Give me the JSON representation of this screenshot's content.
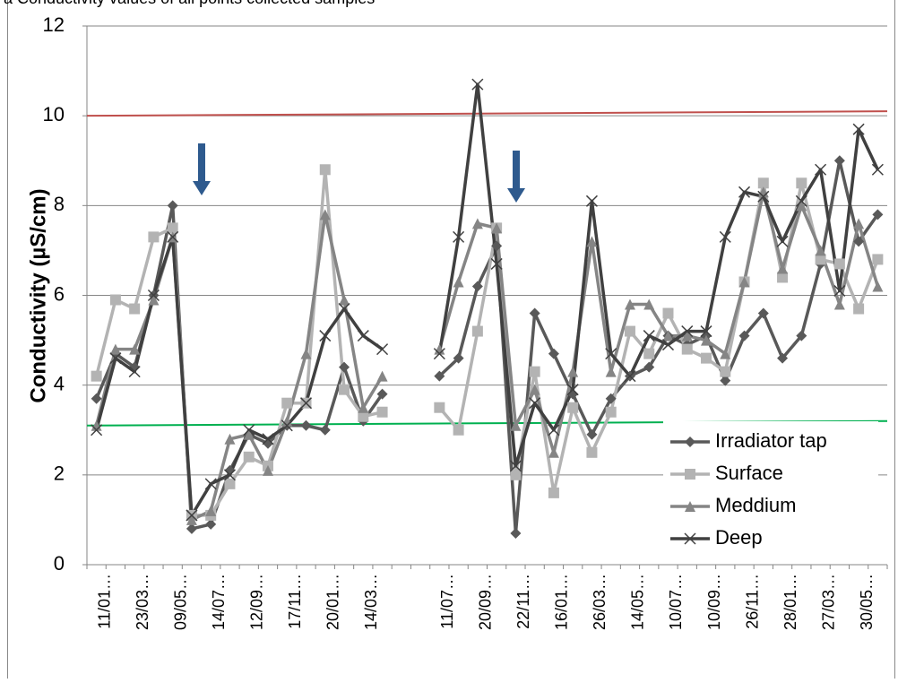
{
  "chart_data": {
    "type": "line",
    "title": "a Conductivity values of all points collected samples",
    "y_label": "Conductivity (µS/cm)",
    "categories": [
      "11/01…",
      null,
      "23/03…",
      null,
      "09/05…",
      null,
      "14/07…",
      null,
      "12/09…",
      null,
      "17/11…",
      null,
      "20/01…",
      null,
      "14/03…",
      null,
      null,
      null,
      "11/07…",
      null,
      "20/09…",
      null,
      "22/11…",
      null,
      "16/01…",
      null,
      "26/03…",
      null,
      "14/05…",
      null,
      "10/07…",
      null,
      "10/09…",
      null,
      "26/11…",
      null,
      "28/01…",
      null,
      "27/03…",
      null,
      "30/05…",
      null
    ],
    "series": [
      {
        "name": "Irradiator tap",
        "color": "#595959",
        "marker": "diamond",
        "values": [
          3.7,
          4.7,
          4.4,
          6.0,
          8.0,
          0.8,
          0.9,
          2.1,
          2.9,
          2.7,
          3.1,
          3.1,
          3.0,
          4.4,
          3.2,
          3.8,
          null,
          null,
          4.2,
          4.6,
          6.2,
          7.1,
          0.7,
          5.6,
          4.7,
          3.8,
          2.9,
          3.7,
          4.2,
          4.4,
          5.1,
          4.9,
          5.1,
          4.1,
          5.1,
          5.6,
          4.6,
          5.1,
          6.7,
          9.0,
          7.2,
          7.8
        ]
      },
      {
        "name": "Surface",
        "color": "#b3b3b3",
        "marker": "square",
        "values": [
          4.2,
          5.9,
          5.7,
          7.3,
          7.5,
          1.1,
          1.1,
          1.8,
          2.4,
          2.2,
          3.6,
          3.6,
          8.8,
          3.9,
          3.3,
          3.4,
          null,
          null,
          3.5,
          3.0,
          5.2,
          7.5,
          2.0,
          4.3,
          1.6,
          3.5,
          2.5,
          3.4,
          5.2,
          4.7,
          5.6,
          4.8,
          4.6,
          4.3,
          6.3,
          8.5,
          6.4,
          8.5,
          6.8,
          6.7,
          5.7,
          6.8
        ]
      },
      {
        "name": "Meddium",
        "color": "#858585",
        "marker": "triangle",
        "values": [
          3.1,
          4.8,
          4.8,
          5.9,
          7.3,
          1.0,
          1.2,
          2.8,
          2.9,
          2.1,
          3.2,
          4.7,
          7.8,
          5.9,
          3.5,
          4.2,
          null,
          null,
          4.8,
          6.3,
          7.6,
          7.5,
          3.1,
          3.9,
          2.5,
          4.3,
          7.2,
          4.3,
          5.8,
          5.8,
          5.1,
          5.1,
          5.0,
          4.7,
          6.3,
          8.3,
          6.6,
          8.0,
          7.0,
          5.8,
          7.6,
          6.2
        ]
      },
      {
        "name": "Deep",
        "color": "#404040",
        "marker": "x",
        "values": [
          3.0,
          4.6,
          4.3,
          6.0,
          7.3,
          1.1,
          1.8,
          2.0,
          3.0,
          2.8,
          3.1,
          3.6,
          5.1,
          5.7,
          5.1,
          4.8,
          null,
          null,
          4.7,
          7.3,
          10.7,
          6.7,
          2.2,
          3.6,
          3.0,
          3.9,
          8.1,
          4.7,
          4.2,
          5.1,
          4.9,
          5.2,
          5.2,
          7.3,
          8.3,
          8.2,
          7.2,
          8.1,
          8.8,
          6.1,
          9.7,
          8.8
        ]
      }
    ],
    "reference_lines": [
      {
        "color": "#c0504d",
        "values": [
          10.0,
          10.1
        ]
      },
      {
        "color": "#00b050",
        "values": [
          3.1,
          3.2
        ]
      }
    ],
    "ylim": [
      0,
      12
    ],
    "yticks": [
      0,
      2,
      4,
      6,
      8,
      10,
      12
    ],
    "grid": true,
    "legend": "lower-right"
  }
}
